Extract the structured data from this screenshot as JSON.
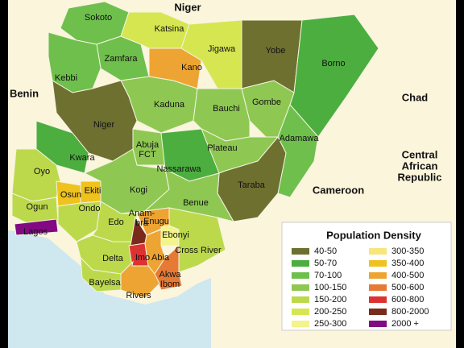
{
  "map": {
    "countries": [
      {
        "name": [
          "Niger"
        ]
      },
      {
        "name": [
          "Benin"
        ]
      },
      {
        "name": [
          "Chad"
        ]
      },
      {
        "name": [
          "Central",
          "African",
          "Republic"
        ]
      },
      {
        "name": [
          "Cameroon"
        ]
      }
    ],
    "legend": {
      "title": "Population Density",
      "entries": [
        {
          "label": "40-50",
          "color": "#6e7030"
        },
        {
          "label": "50-70",
          "color": "#4cae3f"
        },
        {
          "label": "70-100",
          "color": "#6fbf4c"
        },
        {
          "label": "100-150",
          "color": "#8ec853"
        },
        {
          "label": "150-200",
          "color": "#bcd94c"
        },
        {
          "label": "200-250",
          "color": "#d6e651"
        },
        {
          "label": "250-300",
          "color": "#f4f48c"
        },
        {
          "label": "300-350",
          "color": "#f6e67c"
        },
        {
          "label": "350-400",
          "color": "#efc21d"
        },
        {
          "label": "400-500",
          "color": "#eea432"
        },
        {
          "label": "500-600",
          "color": "#e67a35"
        },
        {
          "label": "600-800",
          "color": "#dd3232"
        },
        {
          "label": "800-2000",
          "color": "#7a2a1c"
        },
        {
          "label": "2000 +",
          "color": "#820a82"
        }
      ]
    },
    "states": [
      {
        "name": [
          "Sokoto"
        ],
        "density": "70-100"
      },
      {
        "name": [
          "Zamfara"
        ],
        "density": "70-100"
      },
      {
        "name": [
          "Kebbi"
        ],
        "density": "70-100"
      },
      {
        "name": [
          "Katsina"
        ],
        "density": "200-250"
      },
      {
        "name": [
          "Kano"
        ],
        "density": "400-500"
      },
      {
        "name": [
          "Jigawa"
        ],
        "density": "200-250"
      },
      {
        "name": [
          "Yobe"
        ],
        "density": "40-50"
      },
      {
        "name": [
          "Borno"
        ],
        "density": "50-70"
      },
      {
        "name": [
          "Kaduna"
        ],
        "density": "100-150"
      },
      {
        "name": [
          "Bauchi"
        ],
        "density": "100-150"
      },
      {
        "name": [
          "Gombe"
        ],
        "density": "100-150"
      },
      {
        "name": [
          "Adamawa"
        ],
        "density": "70-100"
      },
      {
        "name": [
          "Niger"
        ],
        "density": "40-50"
      },
      {
        "name": [
          "Kwara"
        ],
        "density": "50-70"
      },
      {
        "name": [
          "Abuja",
          "FCT"
        ],
        "density": "100-150"
      },
      {
        "name": [
          "Nassarawa"
        ],
        "density": "50-70"
      },
      {
        "name": [
          "Plateau"
        ],
        "density": "100-150"
      },
      {
        "name": [
          "Taraba"
        ],
        "density": "40-50"
      },
      {
        "name": [
          "Oyo"
        ],
        "density": "150-200"
      },
      {
        "name": [
          "Ogun"
        ],
        "density": "150-200"
      },
      {
        "name": [
          "Osun"
        ],
        "density": "350-400"
      },
      {
        "name": [
          "Ekiti"
        ],
        "density": "350-400"
      },
      {
        "name": [
          "Ondo"
        ],
        "density": "150-200"
      },
      {
        "name": [
          "Kogi"
        ],
        "density": "100-150"
      },
      {
        "name": [
          "Benue"
        ],
        "density": "100-150"
      },
      {
        "name": [
          "Edo"
        ],
        "density": "150-200"
      },
      {
        "name": [
          "Lagos"
        ],
        "density": "2000 +"
      },
      {
        "name": [
          "Delta"
        ],
        "density": "150-200"
      },
      {
        "name": [
          "Enugu"
        ],
        "density": "400-500"
      },
      {
        "name": [
          "Anam-",
          "bra"
        ],
        "density": "800-2000"
      },
      {
        "name": [
          "Ebonyi"
        ],
        "density": "250-300"
      },
      {
        "name": [
          "Imo"
        ],
        "density": "600-800"
      },
      {
        "name": [
          "Abia"
        ],
        "density": "400-500"
      },
      {
        "name": [
          "Cross River"
        ],
        "density": "150-200"
      },
      {
        "name": [
          "Akwa",
          "Ibom"
        ],
        "density": "500-600"
      },
      {
        "name": [
          "Rivers"
        ],
        "density": "400-500"
      },
      {
        "name": [
          "Bayelsa"
        ],
        "density": "150-200"
      }
    ]
  }
}
